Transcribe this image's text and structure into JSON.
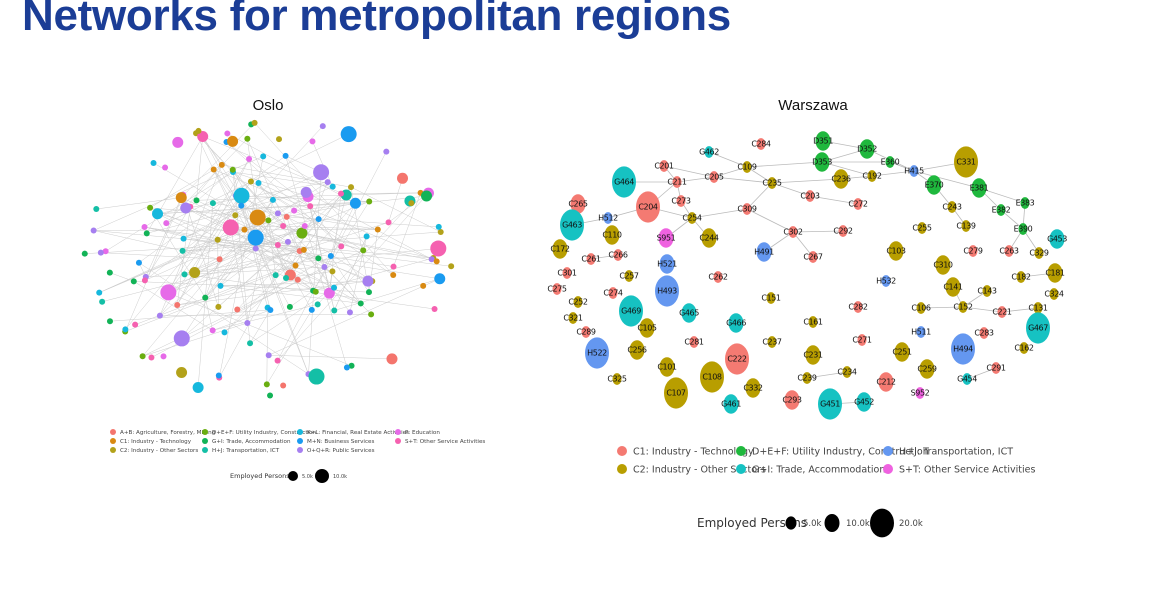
{
  "title": "Networks for metropolitan regions",
  "oslo": {
    "title": "Oslo",
    "legend": [
      {
        "label": "A+B: Agriculture, Forestry, Mining",
        "color": "#f4756d"
      },
      {
        "label": "C1: Industry - Technology",
        "color": "#d98a12"
      },
      {
        "label": "C2: Industry - Other Sectors",
        "color": "#b3a21a"
      },
      {
        "label": "D+E+F: Utility Industry, Construction",
        "color": "#6aae10"
      },
      {
        "label": "G+I: Trade, Accommodation",
        "color": "#12b357"
      },
      {
        "label": "H+J: Transportation, ICT",
        "color": "#14bfa6"
      },
      {
        "label": "K+L: Financial, Real Estate Activities",
        "color": "#16b8dd"
      },
      {
        "label": "M+N: Business Services",
        "color": "#1a9bf0"
      },
      {
        "label": "O+Q+R: Public Services",
        "color": "#a67ff0"
      },
      {
        "label": "P: Education",
        "color": "#e66ae8"
      },
      {
        "label": "S+T: Other Service Activities",
        "color": "#f561b0"
      }
    ],
    "size_legend": {
      "label": "Employed Persons",
      "sizes": [
        "5.0k",
        "10.0k"
      ]
    }
  },
  "warszawa": {
    "title": "Warszawa",
    "categories": {
      "c1": {
        "label": "C1: Industry - Technology",
        "color": "#f47a72"
      },
      "c2": {
        "label": "C2: Industry - Other Sectors",
        "color": "#b89e00"
      },
      "d": {
        "label": "D+E+F: Utility Industry, Construction",
        "color": "#1fb83d"
      },
      "g": {
        "label": "G+I: Trade, Accommodation",
        "color": "#16c2c2"
      },
      "h": {
        "label": "H+J: Transportation, ICT",
        "color": "#6497f0"
      },
      "s": {
        "label": "S+T: Other Service Activities",
        "color": "#ef62e0"
      }
    },
    "size_legend": {
      "label": "Employed Persons",
      "sizes": [
        "5.0k",
        "10.0k",
        "20.0k"
      ]
    },
    "nodes": [
      {
        "id": "G462",
        "cat": "g",
        "size": "small"
      },
      {
        "id": "C284",
        "cat": "c1",
        "size": "small"
      },
      {
        "id": "C201",
        "cat": "c1",
        "size": "small"
      },
      {
        "id": "C109",
        "cat": "c2",
        "size": "small"
      },
      {
        "id": "G464",
        "cat": "g",
        "size": "large"
      },
      {
        "id": "C211",
        "cat": "c1",
        "size": "small"
      },
      {
        "id": "C205",
        "cat": "c1",
        "size": "small"
      },
      {
        "id": "C235",
        "cat": "c2",
        "size": "small"
      },
      {
        "id": "C265",
        "cat": "c1",
        "size": "medium"
      },
      {
        "id": "C204",
        "cat": "c1",
        "size": "large"
      },
      {
        "id": "C273",
        "cat": "c1",
        "size": "small"
      },
      {
        "id": "H512",
        "cat": "h",
        "size": "small"
      },
      {
        "id": "C254",
        "cat": "c2",
        "size": "small"
      },
      {
        "id": "C309",
        "cat": "c1",
        "size": "small"
      },
      {
        "id": "G463",
        "cat": "g",
        "size": "large"
      },
      {
        "id": "C110",
        "cat": "c2",
        "size": "medium"
      },
      {
        "id": "S951",
        "cat": "s",
        "size": "medium"
      },
      {
        "id": "C244",
        "cat": "c2",
        "size": "medium"
      },
      {
        "id": "C172",
        "cat": "c2",
        "size": "medium"
      },
      {
        "id": "H491",
        "cat": "h",
        "size": "medium"
      },
      {
        "id": "C302",
        "cat": "c1",
        "size": "small"
      },
      {
        "id": "C261",
        "cat": "c1",
        "size": "small"
      },
      {
        "id": "C266",
        "cat": "c1",
        "size": "small"
      },
      {
        "id": "C301",
        "cat": "c1",
        "size": "small"
      },
      {
        "id": "H521",
        "cat": "h",
        "size": "medium"
      },
      {
        "id": "C257",
        "cat": "c2",
        "size": "small"
      },
      {
        "id": "C262",
        "cat": "c1",
        "size": "small"
      },
      {
        "id": "D351",
        "cat": "d",
        "size": "medium"
      },
      {
        "id": "D352",
        "cat": "d",
        "size": "medium"
      },
      {
        "id": "D353",
        "cat": "d",
        "size": "medium"
      },
      {
        "id": "E360",
        "cat": "d",
        "size": "small"
      },
      {
        "id": "H415",
        "cat": "h",
        "size": "small"
      },
      {
        "id": "C331",
        "cat": "c2",
        "size": "large"
      },
      {
        "id": "C236",
        "cat": "c2",
        "size": "medium"
      },
      {
        "id": "C192",
        "cat": "c2",
        "size": "small"
      },
      {
        "id": "E370",
        "cat": "d",
        "size": "medium"
      },
      {
        "id": "E381",
        "cat": "d",
        "size": "medium"
      },
      {
        "id": "C203",
        "cat": "c1",
        "size": "small"
      },
      {
        "id": "C272",
        "cat": "c1",
        "size": "small"
      },
      {
        "id": "C243",
        "cat": "c2",
        "size": "small"
      },
      {
        "id": "E382",
        "cat": "d",
        "size": "small"
      },
      {
        "id": "E383",
        "cat": "d",
        "size": "small"
      },
      {
        "id": "C292",
        "cat": "c1",
        "size": "small"
      },
      {
        "id": "C255",
        "cat": "c2",
        "size": "small"
      },
      {
        "id": "C139",
        "cat": "c2",
        "size": "small"
      },
      {
        "id": "E390",
        "cat": "d",
        "size": "small"
      },
      {
        "id": "G453",
        "cat": "g",
        "size": "medium"
      },
      {
        "id": "C103",
        "cat": "c2",
        "size": "medium"
      },
      {
        "id": "C279",
        "cat": "c1",
        "size": "small"
      },
      {
        "id": "C263",
        "cat": "c1",
        "size": "small"
      },
      {
        "id": "C329",
        "cat": "c2",
        "size": "small"
      },
      {
        "id": "C267",
        "cat": "c1",
        "size": "small"
      },
      {
        "id": "C310",
        "cat": "c2",
        "size": "medium"
      },
      {
        "id": "C181",
        "cat": "c2",
        "size": "medium"
      },
      {
        "id": "C182",
        "cat": "c2",
        "size": "small"
      },
      {
        "id": "C275",
        "cat": "c1",
        "size": "small"
      },
      {
        "id": "C274",
        "cat": "c1",
        "size": "small"
      },
      {
        "id": "H493",
        "cat": "h",
        "size": "large"
      },
      {
        "id": "C252",
        "cat": "c2",
        "size": "small"
      },
      {
        "id": "C151",
        "cat": "c2",
        "size": "small"
      },
      {
        "id": "G469",
        "cat": "g",
        "size": "large"
      },
      {
        "id": "G465",
        "cat": "g",
        "size": "medium"
      },
      {
        "id": "G466",
        "cat": "g",
        "size": "medium"
      },
      {
        "id": "C321",
        "cat": "c2",
        "size": "small"
      },
      {
        "id": "C105",
        "cat": "c2",
        "size": "medium"
      },
      {
        "id": "C289",
        "cat": "c1",
        "size": "small"
      },
      {
        "id": "C281",
        "cat": "c1",
        "size": "small"
      },
      {
        "id": "C237",
        "cat": "c2",
        "size": "small"
      },
      {
        "id": "H522",
        "cat": "h",
        "size": "large"
      },
      {
        "id": "C256",
        "cat": "c2",
        "size": "medium"
      },
      {
        "id": "C222",
        "cat": "c1",
        "size": "large"
      },
      {
        "id": "C101",
        "cat": "c2",
        "size": "medium"
      },
      {
        "id": "C108",
        "cat": "c2",
        "size": "large"
      },
      {
        "id": "C325",
        "cat": "c2",
        "size": "small"
      },
      {
        "id": "C107",
        "cat": "c2",
        "size": "large"
      },
      {
        "id": "C332",
        "cat": "c2",
        "size": "medium"
      },
      {
        "id": "G461",
        "cat": "g",
        "size": "medium"
      },
      {
        "id": "C293",
        "cat": "c1",
        "size": "medium"
      },
      {
        "id": "H532",
        "cat": "h",
        "size": "small"
      },
      {
        "id": "C141",
        "cat": "c2",
        "size": "medium"
      },
      {
        "id": "C143",
        "cat": "c2",
        "size": "small"
      },
      {
        "id": "C324",
        "cat": "c2",
        "size": "small"
      },
      {
        "id": "C282",
        "cat": "c1",
        "size": "small"
      },
      {
        "id": "C106",
        "cat": "c2",
        "size": "small"
      },
      {
        "id": "C152",
        "cat": "c2",
        "size": "small"
      },
      {
        "id": "C221",
        "cat": "c1",
        "size": "small"
      },
      {
        "id": "C131",
        "cat": "c2",
        "size": "small"
      },
      {
        "id": "C161",
        "cat": "c2",
        "size": "small"
      },
      {
        "id": "H511",
        "cat": "h",
        "size": "small"
      },
      {
        "id": "C283",
        "cat": "c1",
        "size": "small"
      },
      {
        "id": "G467",
        "cat": "g",
        "size": "large"
      },
      {
        "id": "C271",
        "cat": "c1",
        "size": "small"
      },
      {
        "id": "H494",
        "cat": "h",
        "size": "large"
      },
      {
        "id": "C162",
        "cat": "c2",
        "size": "small"
      },
      {
        "id": "C231",
        "cat": "c2",
        "size": "medium"
      },
      {
        "id": "C251",
        "cat": "c2",
        "size": "medium"
      },
      {
        "id": "C259",
        "cat": "c2",
        "size": "medium"
      },
      {
        "id": "C291",
        "cat": "c1",
        "size": "small"
      },
      {
        "id": "C239",
        "cat": "c2",
        "size": "small"
      },
      {
        "id": "C234",
        "cat": "c2",
        "size": "small"
      },
      {
        "id": "C212",
        "cat": "c1",
        "size": "medium"
      },
      {
        "id": "G454",
        "cat": "g",
        "size": "small"
      },
      {
        "id": "S952",
        "cat": "s",
        "size": "small"
      },
      {
        "id": "G451",
        "cat": "g",
        "size": "large"
      },
      {
        "id": "G452",
        "cat": "g",
        "size": "medium"
      }
    ],
    "edges": [
      [
        "C201",
        "C211"
      ],
      [
        "C211",
        "C205"
      ],
      [
        "C205",
        "C109"
      ],
      [
        "C109",
        "C235"
      ],
      [
        "C211",
        "C204"
      ],
      [
        "C211",
        "C273"
      ],
      [
        "C204",
        "H512"
      ],
      [
        "H512",
        "G463"
      ],
      [
        "C204",
        "C254"
      ],
      [
        "C273",
        "C254"
      ],
      [
        "C254",
        "S951"
      ],
      [
        "C254",
        "C244"
      ],
      [
        "C254",
        "C309"
      ],
      [
        "C309",
        "C235"
      ],
      [
        "C309",
        "C302"
      ],
      [
        "C302",
        "H491"
      ],
      [
        "C302",
        "C292"
      ],
      [
        "C302",
        "C267"
      ],
      [
        "G464",
        "C211"
      ],
      [
        "C109",
        "G462"
      ],
      [
        "C109",
        "D353"
      ],
      [
        "C235",
        "C203"
      ],
      [
        "C203",
        "C272"
      ],
      [
        "C235",
        "C236"
      ],
      [
        "C236",
        "C192"
      ],
      [
        "D351",
        "D352"
      ],
      [
        "D352",
        "D353"
      ],
      [
        "D353",
        "E360"
      ],
      [
        "D353",
        "C192"
      ],
      [
        "D352",
        "H415"
      ],
      [
        "E360",
        "H415"
      ],
      [
        "C192",
        "H415"
      ],
      [
        "H415",
        "C331"
      ],
      [
        "H415",
        "E370"
      ],
      [
        "H415",
        "E381"
      ],
      [
        "E370",
        "C243"
      ],
      [
        "C243",
        "C139"
      ],
      [
        "E381",
        "E382"
      ],
      [
        "E381",
        "E383"
      ],
      [
        "E382",
        "E390"
      ],
      [
        "E383",
        "E390"
      ],
      [
        "E390",
        "C263"
      ],
      [
        "E390",
        "C329"
      ],
      [
        "C201",
        "C205"
      ],
      [
        "C261",
        "C266"
      ],
      [
        "C182",
        "C181"
      ],
      [
        "C141",
        "C152"
      ],
      [
        "C143",
        "C152"
      ],
      [
        "C106",
        "C152"
      ],
      [
        "C152",
        "C221"
      ],
      [
        "C221",
        "C131"
      ],
      [
        "C239",
        "C234"
      ],
      [
        "G451",
        "G452"
      ],
      [
        "G454",
        "C291"
      ],
      [
        "C205",
        "C235"
      ]
    ]
  }
}
